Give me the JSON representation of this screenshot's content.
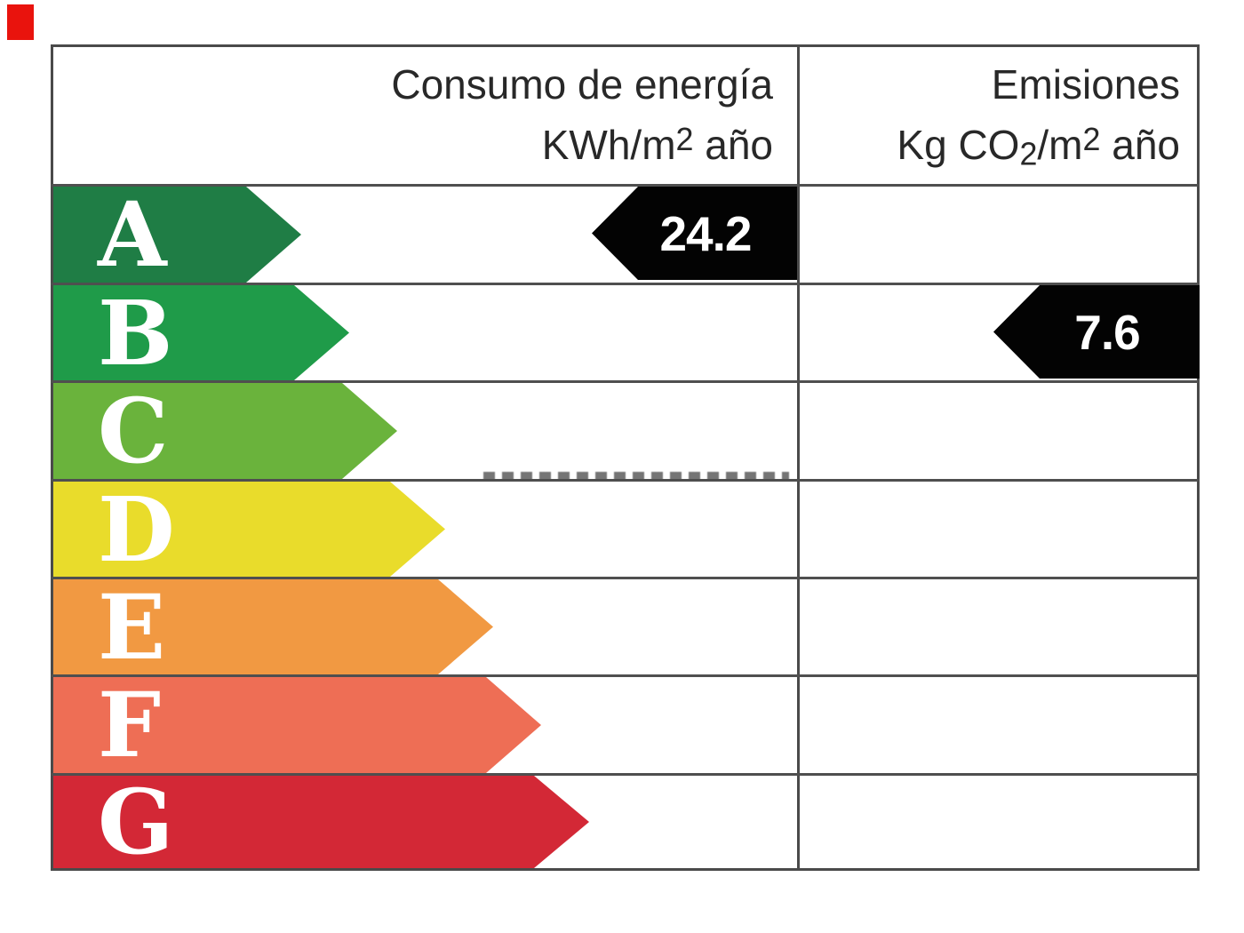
{
  "marker": {
    "color": "#e9130d"
  },
  "header": {
    "consumption_line1": "Consumo de energía",
    "consumption_line2_pre": "KWh/m",
    "consumption_line2_exp": "2",
    "consumption_line2_post": " año",
    "emissions_line1": "Emisiones",
    "emissions_line2_pre": "Kg CO",
    "emissions_line2_sub": "2",
    "emissions_line2_mid": "/m",
    "emissions_line2_exp": "2",
    "emissions_line2_post": " año"
  },
  "ratings": [
    {
      "label": "A",
      "color": "#1f7d45"
    },
    {
      "label": "B",
      "color": "#1f9b49"
    },
    {
      "label": "C",
      "color": "#6ab33c"
    },
    {
      "label": "D",
      "color": "#e9dc2b"
    },
    {
      "label": "E",
      "color": "#f19942"
    },
    {
      "label": "F",
      "color": "#ee6e55"
    },
    {
      "label": "G",
      "color": "#d32836"
    }
  ],
  "values": {
    "consumption_value": "24.2",
    "emissions_value": "7.6"
  },
  "chart_data": {
    "type": "table",
    "columns": [
      "Consumo de energía KWh/m2 año",
      "Emisiones Kg CO2/m2 año"
    ],
    "categories": [
      "A",
      "B",
      "C",
      "D",
      "E",
      "F",
      "G"
    ],
    "band_colors": [
      "#1f7d45",
      "#1f9b49",
      "#6ab33c",
      "#e9dc2b",
      "#f19942",
      "#ee6e55",
      "#d32836"
    ],
    "series": [
      {
        "name": "Consumo de energía KWh/m2 año",
        "rating": "A",
        "value": 24.2
      },
      {
        "name": "Emisiones Kg CO2/m2 año",
        "rating": "B",
        "value": 7.6
      }
    ],
    "legend_position": "none",
    "grid": true
  }
}
